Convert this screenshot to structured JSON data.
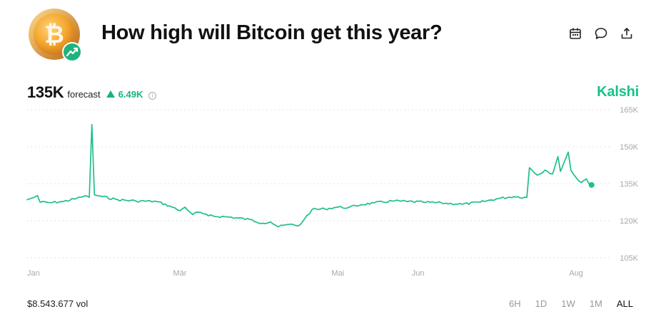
{
  "title": "How high will Bitcoin get this year?",
  "actions": [
    {
      "icon": "calendar-icon"
    },
    {
      "icon": "comment-icon"
    },
    {
      "icon": "share-icon"
    }
  ],
  "forecast": {
    "value": "135K",
    "label": "forecast",
    "change": "6.49K",
    "change_direction": "up"
  },
  "brand": "Kalshi",
  "volume": "$8.543.677 vol",
  "time_ranges": [
    "6H",
    "1D",
    "1W",
    "1M",
    "ALL"
  ],
  "active_range": "ALL",
  "colors": {
    "accent": "#16c28a",
    "line": "#1fbf86",
    "grid": "#d9d9d9",
    "muted_text": "#9a9a9a"
  },
  "chart_data": {
    "type": "line",
    "ylim": [
      105000,
      165000
    ],
    "yticks": [
      105000,
      120000,
      135000,
      150000,
      165000
    ],
    "ytick_labels": [
      "105K",
      "120K",
      "135K",
      "150K",
      "165K"
    ],
    "xlim": [
      "2025-01-01",
      "2025-08-09"
    ],
    "xticks": [
      "2025-01-01",
      "2025-03-01",
      "2025-05-01",
      "2025-06-01",
      "2025-08-01"
    ],
    "xtick_labels": [
      "Jan",
      "Mär",
      "Mai",
      "Jun",
      "Aug"
    ],
    "grid": true,
    "grid_style": "dotted horizontal",
    "series": [
      {
        "color": "#1fbf86",
        "points": [
          [
            "2025-01-01",
            128500
          ],
          [
            "2025-01-03",
            129200
          ],
          [
            "2025-01-05",
            130200
          ],
          [
            "2025-01-06",
            127500
          ],
          [
            "2025-01-10",
            127300
          ],
          [
            "2025-01-15",
            127800
          ],
          [
            "2025-01-20",
            129000
          ],
          [
            "2025-01-23",
            130000
          ],
          [
            "2025-01-25",
            129500
          ],
          [
            "2025-01-26",
            159000
          ],
          [
            "2025-01-27",
            130500
          ],
          [
            "2025-01-30",
            129800
          ],
          [
            "2025-02-05",
            128500
          ],
          [
            "2025-02-12",
            128000
          ],
          [
            "2025-02-20",
            127800
          ],
          [
            "2025-02-25",
            126000
          ],
          [
            "2025-03-01",
            124000
          ],
          [
            "2025-03-03",
            125500
          ],
          [
            "2025-03-06",
            122500
          ],
          [
            "2025-03-08",
            123500
          ],
          [
            "2025-03-12",
            122000
          ],
          [
            "2025-03-20",
            121500
          ],
          [
            "2025-03-28",
            120500
          ],
          [
            "2025-04-02",
            119000
          ],
          [
            "2025-04-05",
            119500
          ],
          [
            "2025-04-08",
            117500
          ],
          [
            "2025-04-12",
            118500
          ],
          [
            "2025-04-16",
            118000
          ],
          [
            "2025-04-18",
            120500
          ],
          [
            "2025-04-21",
            124500
          ],
          [
            "2025-04-26",
            124800
          ],
          [
            "2025-05-01",
            125500
          ],
          [
            "2025-05-05",
            125300
          ],
          [
            "2025-05-10",
            126500
          ],
          [
            "2025-05-15",
            127200
          ],
          [
            "2025-05-22",
            128000
          ],
          [
            "2025-05-28",
            127800
          ],
          [
            "2025-06-03",
            127500
          ],
          [
            "2025-06-10",
            127200
          ],
          [
            "2025-06-18",
            126700
          ],
          [
            "2025-06-25",
            127500
          ],
          [
            "2025-07-02",
            129000
          ],
          [
            "2025-07-08",
            129800
          ],
          [
            "2025-07-13",
            129400
          ],
          [
            "2025-07-14",
            141500
          ],
          [
            "2025-07-17",
            138500
          ],
          [
            "2025-07-20",
            140500
          ],
          [
            "2025-07-23",
            139000
          ],
          [
            "2025-07-25",
            146000
          ],
          [
            "2025-07-26",
            140000
          ],
          [
            "2025-07-29",
            147800
          ],
          [
            "2025-07-30",
            140500
          ],
          [
            "2025-08-01",
            137500
          ],
          [
            "2025-08-03",
            135500
          ],
          [
            "2025-08-05",
            137000
          ],
          [
            "2025-08-06",
            135000
          ],
          [
            "2025-08-07",
            134500
          ]
        ]
      }
    ]
  }
}
